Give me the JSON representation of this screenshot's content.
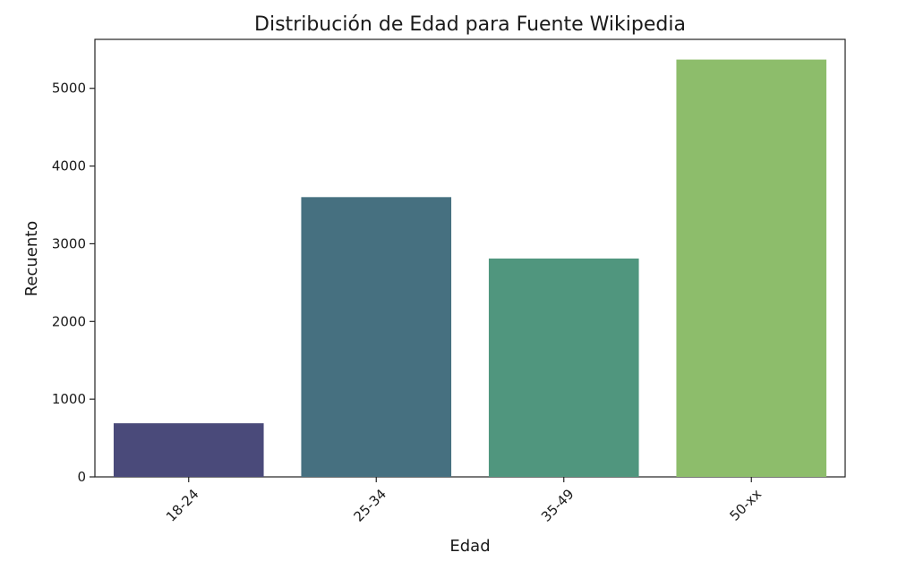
{
  "chart_data": {
    "type": "bar",
    "title": "Distribución de Edad para Fuente Wikipedia",
    "xlabel": "Edad",
    "ylabel": "Recuento",
    "categories": [
      "18-24",
      "25-34",
      "35-49",
      "50-xx"
    ],
    "values": [
      690,
      3600,
      2810,
      5370
    ],
    "ylim": [
      0,
      5630
    ],
    "yticks": [
      0,
      1000,
      2000,
      3000,
      4000,
      5000
    ],
    "colors": [
      "#4a4a7a",
      "#467080",
      "#50967e",
      "#8dbd6b"
    ],
    "grid": false,
    "legend": "none"
  }
}
